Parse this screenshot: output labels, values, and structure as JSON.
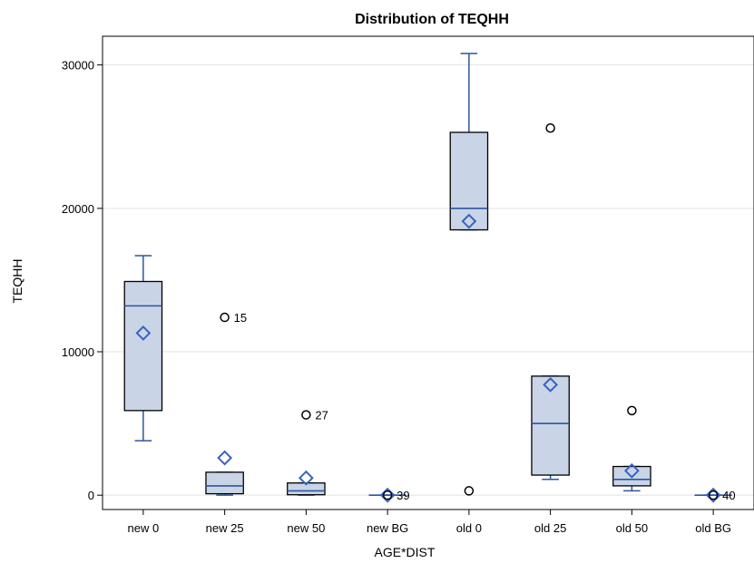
{
  "chart_data": {
    "type": "box",
    "title": "Distribution of TEQHH",
    "xlabel": "AGE*DIST",
    "ylabel": "TEQHH",
    "ylim": [
      -1000,
      32000
    ],
    "yticks": [
      0,
      10000,
      20000,
      30000
    ],
    "grid": true,
    "categories": [
      "new 0",
      "new 25",
      "new 50",
      "new BG",
      "old 0",
      "old 25",
      "old 50",
      "old BG"
    ],
    "boxes": [
      {
        "category": "new 0",
        "whisker_low": 3800,
        "q1": 5900,
        "median": 13200,
        "q3": 14900,
        "whisker_high": 16700,
        "mean": 11300,
        "outliers": []
      },
      {
        "category": "new 25",
        "whisker_low": 0,
        "q1": 100,
        "median": 650,
        "q3": 1600,
        "whisker_high": 1600,
        "mean": 2600,
        "outliers": [
          {
            "value": 12400,
            "label": "15"
          }
        ]
      },
      {
        "category": "new 50",
        "whisker_low": 0,
        "q1": 30,
        "median": 300,
        "q3": 850,
        "whisker_high": 850,
        "mean": 1200,
        "outliers": [
          {
            "value": 5600,
            "label": "27"
          }
        ]
      },
      {
        "category": "new BG",
        "whisker_low": 0,
        "q1": 0,
        "median": 0,
        "q3": 0,
        "whisker_high": 0,
        "mean": 0,
        "outliers": [
          {
            "value": 0,
            "label": "39"
          }
        ]
      },
      {
        "category": "old 0",
        "whisker_low": 18500,
        "q1": 18500,
        "median": 20000,
        "q3": 25300,
        "whisker_high": 30800,
        "mean": 19100,
        "outliers": [
          {
            "value": 300,
            "label": ""
          }
        ]
      },
      {
        "category": "old 25",
        "whisker_low": 1100,
        "q1": 1400,
        "median": 5000,
        "q3": 8300,
        "whisker_high": 8300,
        "mean": 7700,
        "outliers": [
          {
            "value": 25600,
            "label": ""
          }
        ]
      },
      {
        "category": "old 50",
        "whisker_low": 300,
        "q1": 650,
        "median": 1100,
        "q3": 2000,
        "whisker_high": 2000,
        "mean": 1700,
        "outliers": [
          {
            "value": 5900,
            "label": ""
          }
        ]
      },
      {
        "category": "old BG",
        "whisker_low": 0,
        "q1": 0,
        "median": 0,
        "q3": 0,
        "whisker_high": 0,
        "mean": 0,
        "outliers": [
          {
            "value": 0,
            "label": "40"
          }
        ]
      }
    ],
    "colors": {
      "box_fill": "#c9d5e6",
      "box_stroke": "#000000",
      "median": "#2c55a0",
      "whisker": "#2c55a0",
      "mean_marker": "#3a62c4",
      "outlier": "#000000",
      "grid": "#e2e2e2"
    }
  }
}
